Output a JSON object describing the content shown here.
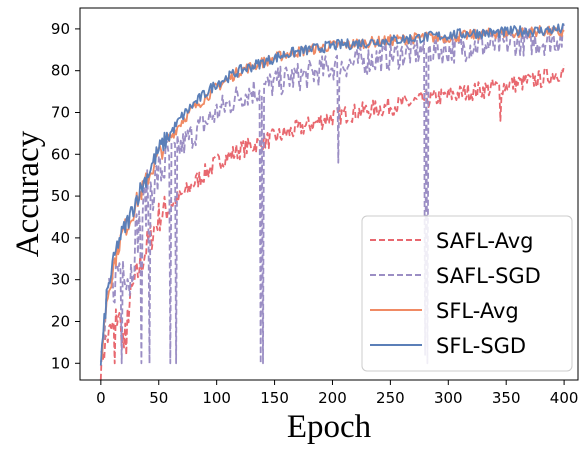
{
  "chart_data": {
    "type": "line",
    "xlabel": "Epoch",
    "ylabel": "Accuracy",
    "xlim": [
      -18,
      412
    ],
    "ylim": [
      6,
      95
    ],
    "xticks": [
      0,
      50,
      100,
      150,
      200,
      250,
      300,
      350,
      400
    ],
    "yticks": [
      10,
      20,
      30,
      40,
      50,
      60,
      70,
      80,
      90
    ],
    "grid": false,
    "legend": "bottom-right",
    "series": [
      {
        "name": "SAFL-Avg",
        "color": "#e8686f",
        "dash": "dashed",
        "x": [
          0,
          5,
          10,
          15,
          20,
          25,
          30,
          40,
          50,
          60,
          70,
          80,
          100,
          120,
          140,
          160,
          180,
          200,
          220,
          240,
          260,
          280,
          300,
          320,
          340,
          360,
          380,
          400
        ],
        "y": [
          10,
          16,
          18,
          22,
          14,
          25,
          30,
          38,
          45,
          48,
          50,
          53,
          58,
          61,
          63,
          65,
          67,
          69,
          70,
          71,
          72,
          73,
          74,
          75,
          76,
          77,
          78,
          80
        ],
        "dips": [
          {
            "x": 12,
            "y": 10
          },
          {
            "x": 22,
            "y": 12
          },
          {
            "x": 345,
            "y": 68
          }
        ]
      },
      {
        "name": "SAFL-SGD",
        "color": "#9b8ec4",
        "dash": "dashed",
        "x": [
          0,
          5,
          10,
          15,
          20,
          25,
          30,
          40,
          50,
          60,
          70,
          80,
          100,
          120,
          140,
          160,
          180,
          200,
          220,
          240,
          260,
          280,
          300,
          320,
          340,
          360,
          380,
          400
        ],
        "y": [
          10,
          22,
          28,
          33,
          35,
          30,
          40,
          50,
          55,
          60,
          62,
          65,
          70,
          74,
          76,
          78,
          79,
          81,
          82,
          83,
          84,
          85,
          85,
          86,
          86,
          87,
          87,
          88
        ],
        "dips": [
          {
            "x": 18,
            "y": 10
          },
          {
            "x": 35,
            "y": 10
          },
          {
            "x": 42,
            "y": 10
          },
          {
            "x": 60,
            "y": 10
          },
          {
            "x": 65,
            "y": 10
          },
          {
            "x": 138,
            "y": 10
          },
          {
            "x": 140,
            "y": 10
          },
          {
            "x": 205,
            "y": 58
          },
          {
            "x": 280,
            "y": 12
          },
          {
            "x": 282,
            "y": 10
          }
        ]
      },
      {
        "name": "SFL-Avg",
        "color": "#f08a64",
        "dash": "solid",
        "x": [
          0,
          5,
          10,
          15,
          20,
          25,
          30,
          40,
          50,
          60,
          70,
          80,
          100,
          120,
          140,
          160,
          180,
          200,
          220,
          240,
          260,
          280,
          300,
          320,
          340,
          360,
          380,
          400
        ],
        "y": [
          10,
          25,
          32,
          38,
          42,
          44,
          48,
          54,
          60,
          64,
          68,
          71,
          76,
          80,
          82,
          84,
          85,
          86,
          86.5,
          87,
          87.5,
          88,
          88,
          88.5,
          89,
          89,
          89.5,
          89
        ],
        "dips": []
      },
      {
        "name": "SFL-SGD",
        "color": "#5b7fb8",
        "dash": "solid",
        "x": [
          0,
          5,
          10,
          15,
          20,
          25,
          30,
          40,
          50,
          60,
          70,
          80,
          100,
          120,
          140,
          160,
          180,
          200,
          220,
          240,
          260,
          280,
          300,
          320,
          340,
          360,
          380,
          400
        ],
        "y": [
          10,
          26,
          33,
          39,
          42,
          45,
          49,
          55,
          61,
          65,
          69,
          72,
          77,
          80,
          82,
          84,
          85,
          86,
          86.5,
          87,
          87.5,
          88,
          88.5,
          89,
          89,
          89.5,
          89.5,
          90
        ],
        "dips": []
      }
    ]
  }
}
